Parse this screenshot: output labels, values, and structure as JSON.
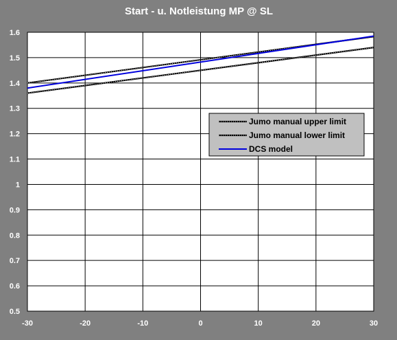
{
  "chart_data": {
    "type": "line",
    "title": "Start - u. Notleistung MP @ SL",
    "xlabel": "",
    "ylabel": "",
    "xlim": [
      -30,
      30
    ],
    "ylim": [
      0.5,
      1.6
    ],
    "x_ticks": [
      -30,
      -20,
      -10,
      0,
      10,
      20,
      30
    ],
    "y_ticks": [
      0.5,
      0.6,
      0.7,
      0.8,
      0.9,
      1,
      1.1,
      1.2,
      1.3,
      1.4,
      1.5,
      1.6
    ],
    "grid": true,
    "legend_position": "right",
    "series": [
      {
        "name": "Jumo manual upper limit",
        "color": "#000000",
        "style": "hatched",
        "x": [
          -30,
          30
        ],
        "y": [
          1.4,
          1.583
        ]
      },
      {
        "name": "Jumo manual lower limit",
        "color": "#000000",
        "style": "hatched",
        "x": [
          -30,
          30
        ],
        "y": [
          1.36,
          1.54
        ]
      },
      {
        "name": "DCS model",
        "color": "#0000dd",
        "style": "solid",
        "x": [
          -30,
          30
        ],
        "y": [
          1.38,
          1.585
        ]
      }
    ]
  }
}
